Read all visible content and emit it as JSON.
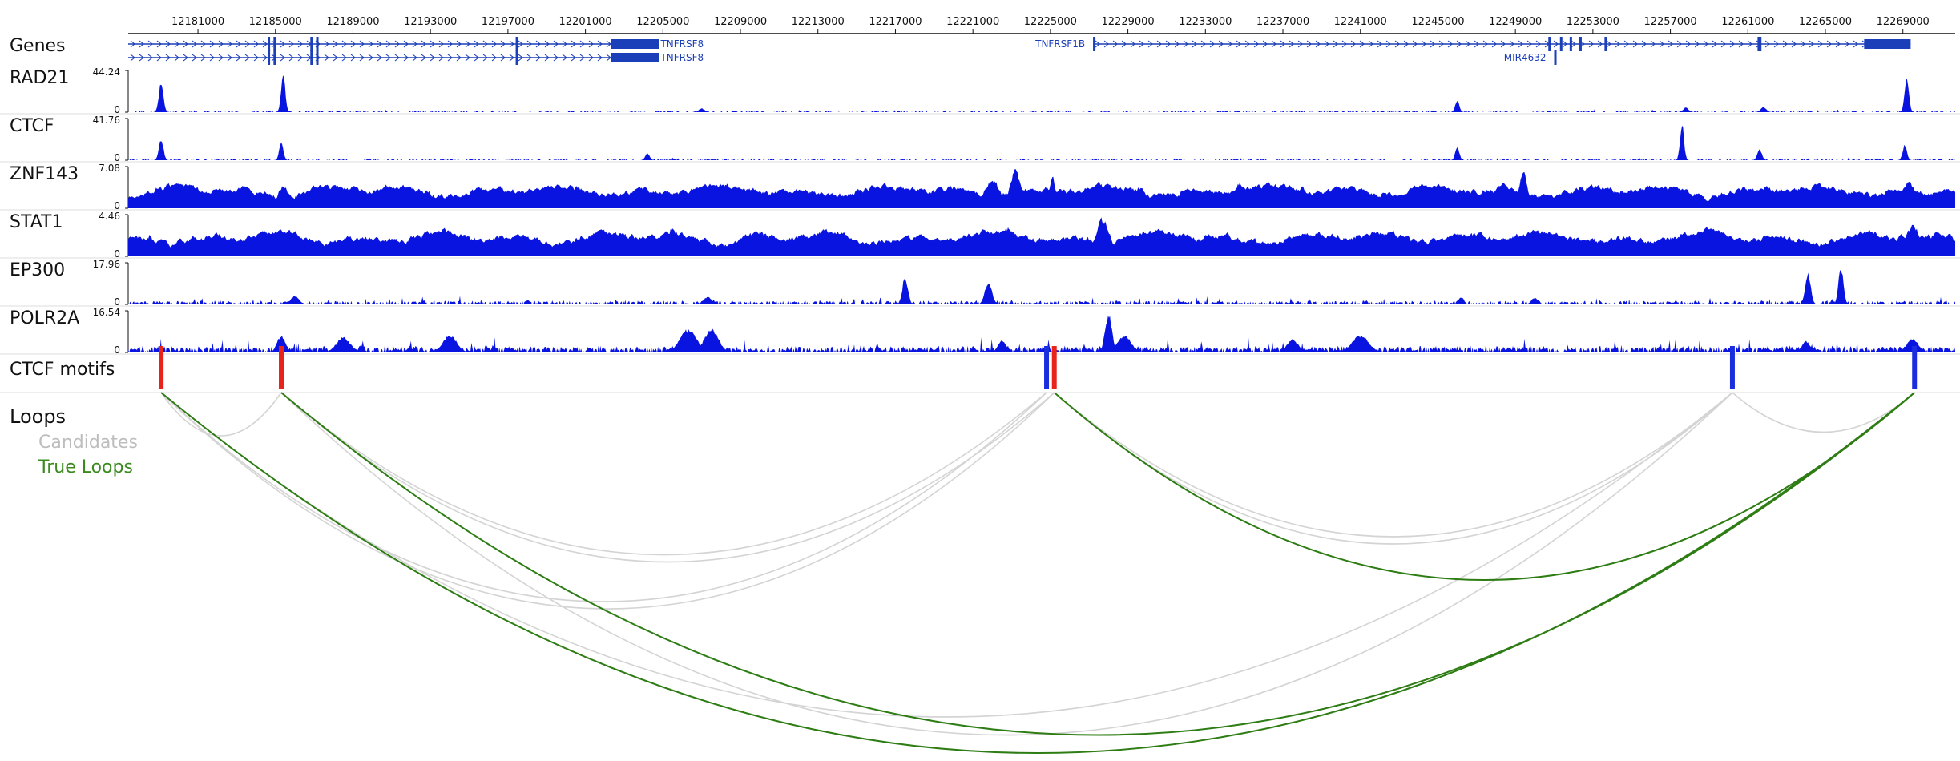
{
  "colors": {
    "signal": "#0a14e0",
    "gene": "#1b3fb8",
    "motif_forward": "#e8231c",
    "motif_reverse": "#1a2ee0",
    "candidate_loop": "#d4d4d4",
    "true_loop": "#2e7d14",
    "axis": "#111111",
    "divider": "#dddddd"
  },
  "chart_data": {
    "type": "genome-browser",
    "xlim": [
      12177400,
      12271700
    ],
    "axis_ticks": [
      12181000,
      12185000,
      12189000,
      12193000,
      12197000,
      12201000,
      12205000,
      12209000,
      12213000,
      12217000,
      12221000,
      12225000,
      12229000,
      12233000,
      12237000,
      12241000,
      12245000,
      12249000,
      12253000,
      12257000,
      12261000,
      12265000,
      12269000
    ],
    "genes_track": {
      "name": "Genes",
      "genes": [
        {
          "name": "TNFRSF8",
          "start": 12177400,
          "end": 12204800,
          "strand": "+",
          "row": 0,
          "exons": [
            [
              12184600,
              12184700
            ],
            [
              12184900,
              12185000
            ],
            [
              12186800,
              12186900
            ],
            [
              12187100,
              12187200
            ],
            [
              12197400,
              12197500
            ],
            [
              12202300,
              12204800
            ]
          ]
        },
        {
          "name": "TNFRSF8",
          "start": 12177400,
          "end": 12204800,
          "strand": "+",
          "row": 1,
          "exons": [
            [
              12184600,
              12184700
            ],
            [
              12184900,
              12185000
            ],
            [
              12186800,
              12186900
            ],
            [
              12187100,
              12187200
            ],
            [
              12197400,
              12197500
            ],
            [
              12202300,
              12204800
            ]
          ]
        },
        {
          "name": "TNFRSF1B",
          "start": 12227200,
          "end": 12269400,
          "strand": "+",
          "row": 0,
          "label_side": "left",
          "exons": [
            [
              12227200,
              12227300
            ],
            [
              12250700,
              12250800
            ],
            [
              12251300,
              12251400
            ],
            [
              12251800,
              12251900
            ],
            [
              12252300,
              12252400
            ],
            [
              12253600,
              12253700
            ],
            [
              12261500,
              12261700
            ],
            [
              12267000,
              12269400
            ]
          ]
        },
        {
          "name": "MIR4632",
          "start": 12251000,
          "end": 12251100,
          "strand": "+",
          "row": 1,
          "label_side": "left",
          "exons": [
            [
              12251000,
              12251100
            ]
          ]
        }
      ]
    },
    "signal_tracks": [
      {
        "name": "RAD21",
        "ymax": "44.24",
        "ymin": "0",
        "baseline": 0.03,
        "noise": 0.05,
        "density": 0.35,
        "seed": 11,
        "broad": false,
        "peaks": [
          [
            12179100,
            0.78,
            160
          ],
          [
            12185400,
            1.0,
            150
          ],
          [
            12207000,
            0.1,
            200
          ],
          [
            12246000,
            0.3,
            150
          ],
          [
            12257800,
            0.12,
            200
          ],
          [
            12261800,
            0.14,
            200
          ],
          [
            12269200,
            0.95,
            150
          ]
        ]
      },
      {
        "name": "CTCF",
        "ymax": "41.76",
        "ymin": "0",
        "baseline": 0.03,
        "noise": 0.05,
        "density": 0.35,
        "seed": 23,
        "broad": false,
        "peaks": [
          [
            12179100,
            0.56,
            160
          ],
          [
            12185300,
            0.45,
            150
          ],
          [
            12204200,
            0.18,
            160
          ],
          [
            12246000,
            0.35,
            150
          ],
          [
            12257600,
            1.0,
            140
          ],
          [
            12261600,
            0.3,
            160
          ],
          [
            12269100,
            0.42,
            150
          ]
        ]
      },
      {
        "name": "ZNF143",
        "ymax": "7.08",
        "ymin": "0",
        "baseline": 0.28,
        "noise": 0.4,
        "density": 1.0,
        "seed": 37,
        "broad": true,
        "peaks": [
          [
            12179100,
            0.55,
            400
          ],
          [
            12185400,
            0.6,
            400
          ],
          [
            12190800,
            0.55,
            500
          ],
          [
            12197200,
            0.5,
            400
          ],
          [
            12204400,
            0.45,
            500
          ],
          [
            12210000,
            0.45,
            400
          ],
          [
            12215000,
            0.45,
            400
          ],
          [
            12222000,
            0.75,
            600
          ],
          [
            12223200,
            1.0,
            400
          ],
          [
            12225100,
            0.85,
            200
          ],
          [
            12227500,
            0.7,
            400
          ],
          [
            12229600,
            0.55,
            500
          ],
          [
            12234800,
            0.65,
            500
          ],
          [
            12238000,
            0.55,
            400
          ],
          [
            12244000,
            0.5,
            400
          ],
          [
            12248400,
            0.72,
            400
          ],
          [
            12249400,
            0.98,
            300
          ],
          [
            12256000,
            0.55,
            400
          ],
          [
            12262000,
            0.6,
            400
          ],
          [
            12269300,
            0.7,
            500
          ]
        ]
      },
      {
        "name": "STAT1",
        "ymax": "4.46",
        "ymin": "0",
        "baseline": 0.32,
        "noise": 0.4,
        "density": 1.0,
        "seed": 53,
        "broad": true,
        "peaks": [
          [
            12178500,
            0.55,
            400
          ],
          [
            12185500,
            0.55,
            400
          ],
          [
            12195000,
            0.5,
            400
          ],
          [
            12203000,
            0.6,
            500
          ],
          [
            12205500,
            0.7,
            700
          ],
          [
            12210000,
            0.65,
            600
          ],
          [
            12222800,
            0.75,
            800
          ],
          [
            12227700,
            1.0,
            500
          ],
          [
            12232000,
            0.6,
            500
          ],
          [
            12238000,
            0.55,
            500
          ],
          [
            12247000,
            0.6,
            500
          ],
          [
            12253000,
            0.5,
            400
          ],
          [
            12262000,
            0.55,
            500
          ],
          [
            12269500,
            0.85,
            500
          ]
        ]
      },
      {
        "name": "EP300",
        "ymax": "17.96",
        "ymin": "0",
        "baseline": 0.06,
        "noise": 0.16,
        "density": 0.7,
        "seed": 67,
        "broad": false,
        "peaks": [
          [
            12186000,
            0.22,
            300
          ],
          [
            12217500,
            0.72,
            200
          ],
          [
            12221800,
            0.6,
            250
          ],
          [
            12207300,
            0.2,
            300
          ],
          [
            12264100,
            0.82,
            200
          ],
          [
            12265800,
            1.0,
            180
          ],
          [
            12246200,
            0.2,
            200
          ],
          [
            12250000,
            0.18,
            250
          ]
        ]
      },
      {
        "name": "POLR2A",
        "ymax": "16.54",
        "ymin": "0",
        "baseline": 0.08,
        "noise": 0.32,
        "density": 0.85,
        "seed": 79,
        "broad": false,
        "peaks": [
          [
            12185300,
            0.45,
            300
          ],
          [
            12188500,
            0.4,
            500
          ],
          [
            12194000,
            0.45,
            500
          ],
          [
            12206300,
            0.6,
            600
          ],
          [
            12207500,
            0.62,
            500
          ],
          [
            12222500,
            0.3,
            300
          ],
          [
            12228000,
            1.0,
            250
          ],
          [
            12228800,
            0.45,
            500
          ],
          [
            12237500,
            0.35,
            400
          ],
          [
            12241000,
            0.45,
            600
          ],
          [
            12264000,
            0.3,
            300
          ],
          [
            12269500,
            0.38,
            400
          ]
        ]
      }
    ],
    "motifs_track": {
      "name": "CTCF motifs",
      "motifs": [
        {
          "pos": 12179100,
          "strand": "+"
        },
        {
          "pos": 12185300,
          "strand": "+"
        },
        {
          "pos": 12224800,
          "strand": "-"
        },
        {
          "pos": 12225200,
          "strand": "+"
        },
        {
          "pos": 12260200,
          "strand": "-"
        },
        {
          "pos": 12269600,
          "strand": "-"
        }
      ]
    },
    "loops_track": {
      "name": "Loops",
      "legend": [
        {
          "label": "Candidates",
          "key": "candidate"
        },
        {
          "label": "True Loops",
          "key": "true"
        }
      ],
      "candidates": [
        [
          12179100,
          12185300,
          0.12
        ],
        [
          12179100,
          12224800,
          0.58
        ],
        [
          12179100,
          12225200,
          0.6
        ],
        [
          12185300,
          12224800,
          0.45
        ],
        [
          12185300,
          12225200,
          0.47
        ],
        [
          12225200,
          12260200,
          0.42
        ],
        [
          12225200,
          12260200,
          0.4
        ],
        [
          12260200,
          12269600,
          0.11
        ],
        [
          12185300,
          12260200,
          0.95
        ],
        [
          12179100,
          12260200,
          0.9
        ]
      ],
      "true_loops": [
        [
          12179100,
          12269600,
          1.0
        ],
        [
          12185300,
          12269600,
          0.95
        ],
        [
          12225200,
          12269600,
          0.52
        ]
      ]
    }
  }
}
